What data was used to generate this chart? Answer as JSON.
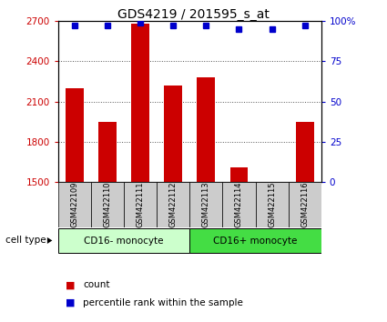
{
  "title": "GDS4219 / 201595_s_at",
  "samples": [
    "GSM422109",
    "GSM422110",
    "GSM422111",
    "GSM422112",
    "GSM422113",
    "GSM422114",
    "GSM422115",
    "GSM422116"
  ],
  "counts": [
    2200,
    1950,
    2680,
    2220,
    2280,
    1610,
    1500,
    1950
  ],
  "percentile_ranks": [
    97,
    97,
    99,
    97,
    97,
    95,
    95,
    97
  ],
  "ylim_left": [
    1500,
    2700
  ],
  "ylim_right": [
    0,
    100
  ],
  "yticks_left": [
    1500,
    1800,
    2100,
    2400,
    2700
  ],
  "yticks_right": [
    0,
    25,
    50,
    75,
    100
  ],
  "bar_color": "#cc0000",
  "dot_color": "#0000cc",
  "group1_label": "CD16- monocyte",
  "group2_label": "CD16+ monocyte",
  "group1_indices": [
    0,
    1,
    2,
    3
  ],
  "group2_indices": [
    4,
    5,
    6,
    7
  ],
  "cell_type_label": "cell type",
  "legend_count_label": "count",
  "legend_percentile_label": "percentile rank within the sample",
  "group1_bg": "#ccffcc",
  "group2_bg": "#44dd44",
  "sample_bg": "#cccccc",
  "left_tick_color": "#cc0000",
  "right_tick_color": "#0000cc",
  "grid_color": "#555555",
  "base_value": 1500
}
